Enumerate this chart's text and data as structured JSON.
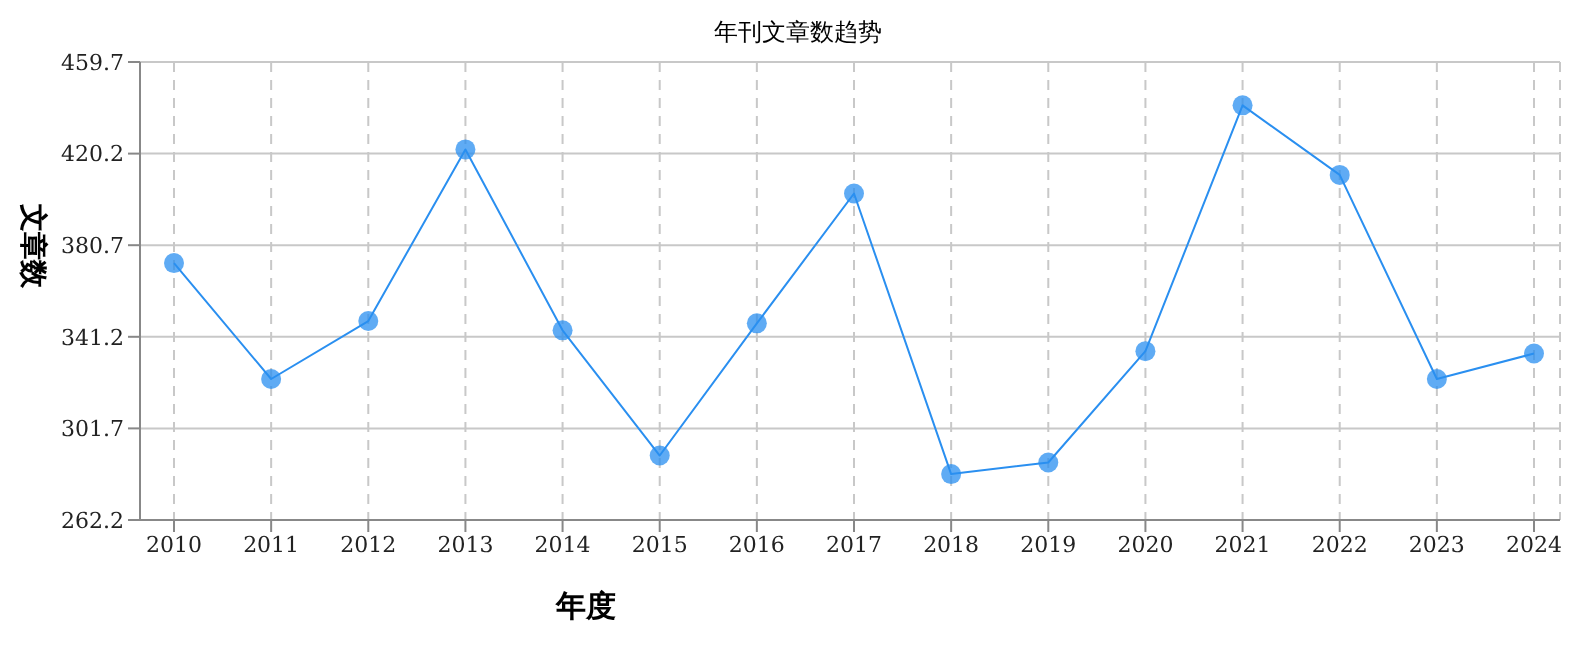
{
  "chart_data": {
    "type": "line",
    "title": "年刊文章数趋势",
    "xlabel": "年度",
    "ylabel": "文章数",
    "categories": [
      "2010",
      "2011",
      "2012",
      "2013",
      "2014",
      "2015",
      "2016",
      "2017",
      "2018",
      "2019",
      "2020",
      "2021",
      "2022",
      "2023",
      "2024"
    ],
    "series": [
      {
        "color": "#2a8ff0",
        "values": [
          373,
          323,
          348,
          422,
          344,
          290,
          347,
          403,
          282,
          287,
          335,
          441,
          411,
          323,
          334
        ]
      }
    ],
    "ylim": [
      262.2,
      459.7
    ],
    "yticks": [
      262.2,
      301.7,
      341.2,
      380.7,
      420.2,
      459.7
    ],
    "grid": true,
    "marker": "circle",
    "line_style": "solid",
    "legend": false
  }
}
